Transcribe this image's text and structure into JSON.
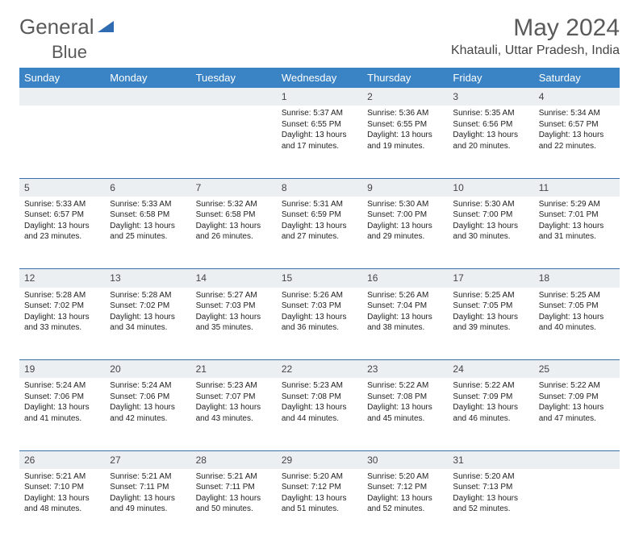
{
  "logo": {
    "part1": "General",
    "part2": "Blue",
    "icon_color": "#2e6bb0"
  },
  "month_title": "May 2024",
  "location": "Khatauli, Uttar Pradesh, India",
  "header_bg": "#3a83c5",
  "daynum_bg": "#eceff1",
  "border_color": "#3a6fa5",
  "weekdays": [
    "Sunday",
    "Monday",
    "Tuesday",
    "Wednesday",
    "Thursday",
    "Friday",
    "Saturday"
  ],
  "weeks": [
    [
      null,
      null,
      null,
      {
        "n": "1",
        "sr": "5:37 AM",
        "ss": "6:55 PM",
        "dl": "13 hours and 17 minutes."
      },
      {
        "n": "2",
        "sr": "5:36 AM",
        "ss": "6:55 PM",
        "dl": "13 hours and 19 minutes."
      },
      {
        "n": "3",
        "sr": "5:35 AM",
        "ss": "6:56 PM",
        "dl": "13 hours and 20 minutes."
      },
      {
        "n": "4",
        "sr": "5:34 AM",
        "ss": "6:57 PM",
        "dl": "13 hours and 22 minutes."
      }
    ],
    [
      {
        "n": "5",
        "sr": "5:33 AM",
        "ss": "6:57 PM",
        "dl": "13 hours and 23 minutes."
      },
      {
        "n": "6",
        "sr": "5:33 AM",
        "ss": "6:58 PM",
        "dl": "13 hours and 25 minutes."
      },
      {
        "n": "7",
        "sr": "5:32 AM",
        "ss": "6:58 PM",
        "dl": "13 hours and 26 minutes."
      },
      {
        "n": "8",
        "sr": "5:31 AM",
        "ss": "6:59 PM",
        "dl": "13 hours and 27 minutes."
      },
      {
        "n": "9",
        "sr": "5:30 AM",
        "ss": "7:00 PM",
        "dl": "13 hours and 29 minutes."
      },
      {
        "n": "10",
        "sr": "5:30 AM",
        "ss": "7:00 PM",
        "dl": "13 hours and 30 minutes."
      },
      {
        "n": "11",
        "sr": "5:29 AM",
        "ss": "7:01 PM",
        "dl": "13 hours and 31 minutes."
      }
    ],
    [
      {
        "n": "12",
        "sr": "5:28 AM",
        "ss": "7:02 PM",
        "dl": "13 hours and 33 minutes."
      },
      {
        "n": "13",
        "sr": "5:28 AM",
        "ss": "7:02 PM",
        "dl": "13 hours and 34 minutes."
      },
      {
        "n": "14",
        "sr": "5:27 AM",
        "ss": "7:03 PM",
        "dl": "13 hours and 35 minutes."
      },
      {
        "n": "15",
        "sr": "5:26 AM",
        "ss": "7:03 PM",
        "dl": "13 hours and 36 minutes."
      },
      {
        "n": "16",
        "sr": "5:26 AM",
        "ss": "7:04 PM",
        "dl": "13 hours and 38 minutes."
      },
      {
        "n": "17",
        "sr": "5:25 AM",
        "ss": "7:05 PM",
        "dl": "13 hours and 39 minutes."
      },
      {
        "n": "18",
        "sr": "5:25 AM",
        "ss": "7:05 PM",
        "dl": "13 hours and 40 minutes."
      }
    ],
    [
      {
        "n": "19",
        "sr": "5:24 AM",
        "ss": "7:06 PM",
        "dl": "13 hours and 41 minutes."
      },
      {
        "n": "20",
        "sr": "5:24 AM",
        "ss": "7:06 PM",
        "dl": "13 hours and 42 minutes."
      },
      {
        "n": "21",
        "sr": "5:23 AM",
        "ss": "7:07 PM",
        "dl": "13 hours and 43 minutes."
      },
      {
        "n": "22",
        "sr": "5:23 AM",
        "ss": "7:08 PM",
        "dl": "13 hours and 44 minutes."
      },
      {
        "n": "23",
        "sr": "5:22 AM",
        "ss": "7:08 PM",
        "dl": "13 hours and 45 minutes."
      },
      {
        "n": "24",
        "sr": "5:22 AM",
        "ss": "7:09 PM",
        "dl": "13 hours and 46 minutes."
      },
      {
        "n": "25",
        "sr": "5:22 AM",
        "ss": "7:09 PM",
        "dl": "13 hours and 47 minutes."
      }
    ],
    [
      {
        "n": "26",
        "sr": "5:21 AM",
        "ss": "7:10 PM",
        "dl": "13 hours and 48 minutes."
      },
      {
        "n": "27",
        "sr": "5:21 AM",
        "ss": "7:11 PM",
        "dl": "13 hours and 49 minutes."
      },
      {
        "n": "28",
        "sr": "5:21 AM",
        "ss": "7:11 PM",
        "dl": "13 hours and 50 minutes."
      },
      {
        "n": "29",
        "sr": "5:20 AM",
        "ss": "7:12 PM",
        "dl": "13 hours and 51 minutes."
      },
      {
        "n": "30",
        "sr": "5:20 AM",
        "ss": "7:12 PM",
        "dl": "13 hours and 52 minutes."
      },
      {
        "n": "31",
        "sr": "5:20 AM",
        "ss": "7:13 PM",
        "dl": "13 hours and 52 minutes."
      },
      null
    ]
  ],
  "labels": {
    "sunrise": "Sunrise:",
    "sunset": "Sunset:",
    "daylight": "Daylight:"
  }
}
